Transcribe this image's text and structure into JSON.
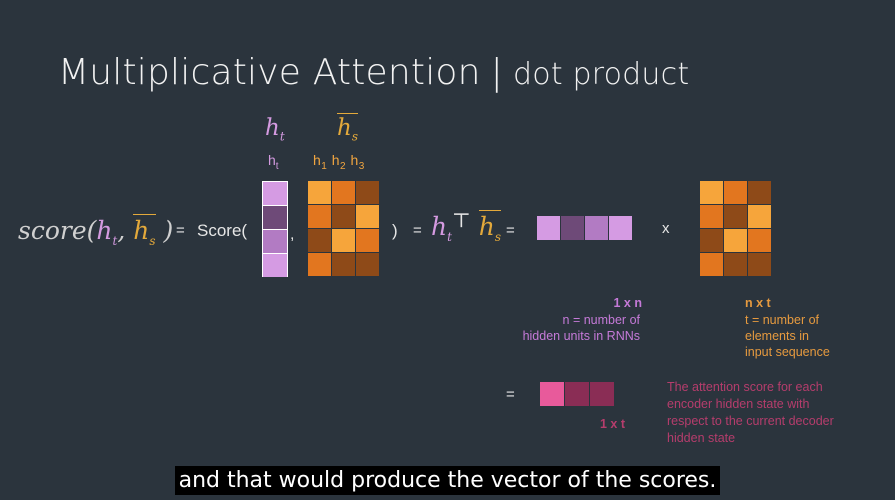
{
  "title": {
    "main": "Multiplicative Attention",
    "separator": "|",
    "sub": "dot product"
  },
  "labels": {
    "ht_big": "h",
    "ht_big_sub": "t",
    "hs_big": "h",
    "hs_big_sub": "s",
    "ht_small": "h",
    "ht_small_sub": "t",
    "h1": "h",
    "h1_sub": "1",
    "h2": "h",
    "h2_sub": "2",
    "h3": "h",
    "h3_sub": "3"
  },
  "equation": {
    "score_fn": "score(",
    "score_ht": "h",
    "score_ht_sub": "t",
    "score_comma": ",",
    "score_hs": "h",
    "score_hs_sub": "s",
    "score_close": ")",
    "eq1": "=",
    "score_call": "Score(",
    "comma": ",",
    "paren_close": ")",
    "eq2": "=",
    "htT_h": "h",
    "htT_sub": "t",
    "htT_T": "⊤",
    "htT_hs": "h",
    "htT_hs_sub": "s",
    "eq3": "=",
    "times": "x",
    "eq4": "="
  },
  "annotations": {
    "dim_1xn": "1 x n",
    "n_desc_1": "n = number of",
    "n_desc_2": "hidden units in RNNs",
    "dim_nxt": "n x t",
    "t_desc_1": "t = number of",
    "t_desc_2": "elements in",
    "t_desc_3": "input sequence",
    "dim_1xt": "1 x t",
    "score_desc_1": "The attention score for each",
    "score_desc_2": "encoder hidden state with",
    "score_desc_3": "respect to the current decoder",
    "score_desc_4": "hidden state"
  },
  "caption": "and that would produce the vector of the scores.",
  "colors": {
    "background": "#2b343d",
    "ht_purple": "#d49ae0",
    "hs_gold": "#e3a93b",
    "annotation_purple": "#c57ad8",
    "annotation_orange": "#e69a3f",
    "annotation_pink": "#b53d6c"
  },
  "matrices": {
    "ht_column": [
      "#d59be3",
      "#6e4a78",
      "#b27bc3",
      "#d59be3"
    ],
    "hs_matrix": [
      [
        "#f6a53b",
        "#e2761f",
        "#8e4a18"
      ],
      [
        "#e2761f",
        "#8e4a18",
        "#f6a53b"
      ],
      [
        "#8e4a18",
        "#f6a53b",
        "#e2761f"
      ],
      [
        "#e2761f",
        "#8e4a18",
        "#8e4a18"
      ]
    ],
    "ht_row": [
      "#d59be3",
      "#6e4a78",
      "#b27bc3",
      "#d59be3"
    ],
    "ns_matrix": [
      [
        "#f6a53b",
        "#e2761f",
        "#8e4a18"
      ],
      [
        "#e2761f",
        "#8e4a18",
        "#f6a53b"
      ],
      [
        "#8e4a18",
        "#f6a53b",
        "#e2761f"
      ],
      [
        "#e2761f",
        "#8e4a18",
        "#8e4a18"
      ]
    ],
    "result_row": [
      "#e85a9b",
      "#8a2d55",
      "#8a2d55"
    ]
  }
}
